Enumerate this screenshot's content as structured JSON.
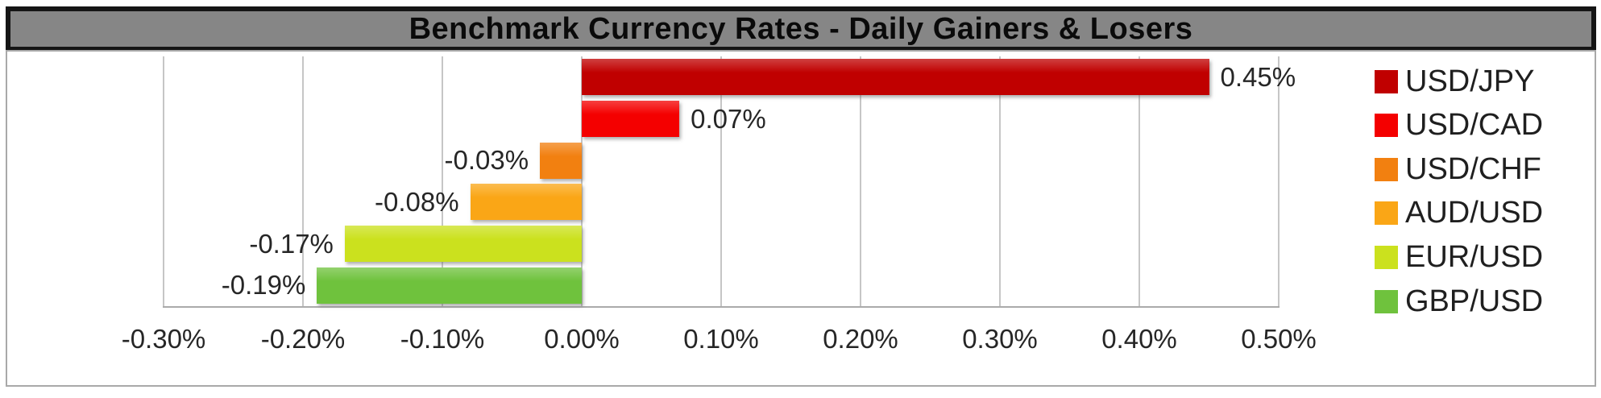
{
  "chart_data": {
    "type": "bar",
    "orientation": "horizontal",
    "title": "Benchmark Currency Rates - Daily Gainers & Losers",
    "categories": [
      "USD/JPY",
      "USD/CAD",
      "USD/CHF",
      "AUD/USD",
      "EUR/USD",
      "GBP/USD"
    ],
    "values": [
      0.45,
      0.07,
      -0.03,
      -0.08,
      -0.17,
      -0.19
    ],
    "data_labels": [
      "0.45%",
      "0.07%",
      "-0.03%",
      "-0.08%",
      "-0.17%",
      "-0.19%"
    ],
    "series_colors": [
      "#C00000",
      "#F40000",
      "#F28010",
      "#FAA616",
      "#CBE11E",
      "#6FC23D"
    ],
    "x_ticks": [
      "-0.30%",
      "-0.20%",
      "-0.10%",
      "0.00%",
      "0.10%",
      "0.20%",
      "0.30%",
      "0.40%",
      "0.50%"
    ],
    "xlim": [
      -0.3,
      0.5
    ],
    "x_tick_step": 0.1,
    "xlabel": "",
    "ylabel": "",
    "legend_position": "right",
    "grid": "vertical-major"
  },
  "style_colors": {
    "title_bar_bg": "#868686",
    "title_text": "#0A0A0A",
    "chart_border": "#A9A9A9",
    "gridline": "#C6C6C6",
    "axis_line": "#ABABAB",
    "label_text": "#262626",
    "legend_text": "#1F1F1F"
  }
}
